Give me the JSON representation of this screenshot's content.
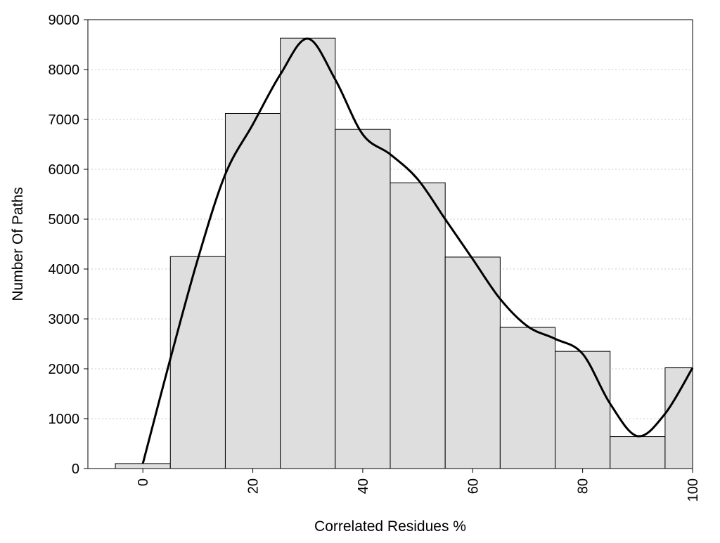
{
  "chart_data": {
    "type": "bar",
    "title": "",
    "xlabel": "Correlated Residues %",
    "ylabel": "Number Of Paths",
    "bin_width": 10,
    "x_axis_range": [
      -10,
      100
    ],
    "ylim": [
      0,
      9000
    ],
    "grid": "horizontal-dotted",
    "legend": "none",
    "x_ticks": [
      0,
      20,
      40,
      60,
      80,
      100
    ],
    "y_ticks": [
      0,
      1000,
      2000,
      3000,
      4000,
      5000,
      6000,
      7000,
      8000,
      9000
    ],
    "bins": [
      {
        "center": 0,
        "value": 100
      },
      {
        "center": 10,
        "value": 4250
      },
      {
        "center": 20,
        "value": 7120
      },
      {
        "center": 30,
        "value": 8630
      },
      {
        "center": 40,
        "value": 6800
      },
      {
        "center": 50,
        "value": 5730
      },
      {
        "center": 60,
        "value": 4240
      },
      {
        "center": 70,
        "value": 2830
      },
      {
        "center": 80,
        "value": 2350
      },
      {
        "center": 90,
        "value": 640
      },
      {
        "center": 100,
        "value": 2020
      }
    ],
    "density_curve": {
      "x": [
        0,
        5,
        10,
        15,
        20,
        25,
        30,
        35,
        40,
        45,
        50,
        55,
        60,
        65,
        70,
        75,
        80,
        85,
        90,
        95,
        100
      ],
      "y": [
        100,
        2200,
        4200,
        5900,
        6900,
        7900,
        8620,
        7800,
        6700,
        6300,
        5800,
        5000,
        4200,
        3400,
        2850,
        2600,
        2300,
        1300,
        650,
        1100,
        2020
      ]
    },
    "colors": {
      "bar_fill": "#dedede",
      "bar_stroke": "#000000",
      "curve": "#000000",
      "grid": "#c8c8c8",
      "frame": "#000000"
    }
  }
}
